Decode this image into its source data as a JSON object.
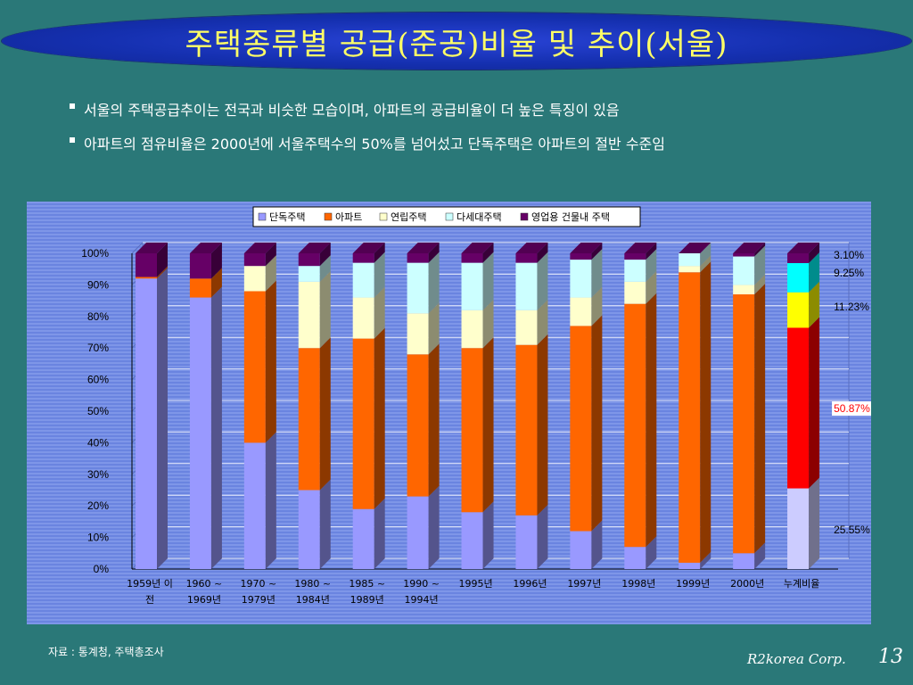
{
  "slide": {
    "title": "주택종류별 공급(준공)비율 및 추이(서울)",
    "bullets": [
      "서울의 주택공급추이는 전국과 비슷한 모습이며, 아파트의 공급비율이 더 높은 특징이 있음",
      "아파트의 점유비율은 2000년에 서울주택수의 50%를 넘어섰고 단독주택은 아파트의 절반 수준임"
    ],
    "source": "자료 : 통계청, 주택총조사",
    "footer_brand": "R2korea Corp.",
    "page_number": "13"
  },
  "chart_data": {
    "type": "bar",
    "stacked": true,
    "percent": true,
    "categories": [
      "1959년 이전",
      "1960 ~ 1969년",
      "1970 ~ 1979년",
      "1980 ~ 1984년",
      "1985 ~ 1989년",
      "1990 ~ 1994년",
      "1995년",
      "1996년",
      "1997년",
      "1998년",
      "1999년",
      "2000년",
      "누계비율"
    ],
    "series": [
      {
        "name": "단독주택",
        "color": "#9999ff",
        "values": [
          92,
          86,
          40,
          25,
          19,
          23,
          18,
          17,
          12,
          7,
          2,
          5,
          25.55
        ]
      },
      {
        "name": "아파트",
        "color": "#ff6600",
        "values": [
          0.5,
          6,
          48,
          45,
          54,
          45,
          52,
          54,
          65,
          77,
          92,
          82,
          50.87
        ]
      },
      {
        "name": "연립주택",
        "color": "#ffffcc",
        "values": [
          0,
          0,
          8,
          21,
          13,
          13,
          12,
          11,
          9,
          7,
          2,
          3,
          11.23
        ]
      },
      {
        "name": "다세대주택",
        "color": "#ccffff",
        "values": [
          0,
          0,
          0,
          5,
          11,
          16,
          15,
          15,
          12,
          7,
          4,
          9,
          9.25
        ]
      },
      {
        "name": "영업용 건물내 주택",
        "color": "#660066",
        "values": [
          7.5,
          8,
          4,
          4,
          3,
          3,
          3,
          3,
          2,
          2,
          0,
          1,
          3.1
        ]
      }
    ],
    "cumulative_colors": [
      "#ccccff",
      "#ff0000",
      "#ffff00",
      "#00ffff",
      "#660066"
    ],
    "cumulative_labels": [
      "3.10%",
      "9.25%",
      "11.23%",
      "50.87%",
      "25.55%"
    ],
    "y_ticks": [
      "0%",
      "10%",
      "20%",
      "30%",
      "40%",
      "50%",
      "60%",
      "70%",
      "80%",
      "90%",
      "100%"
    ],
    "ylim": [
      0,
      100
    ],
    "legend_position": "top"
  }
}
